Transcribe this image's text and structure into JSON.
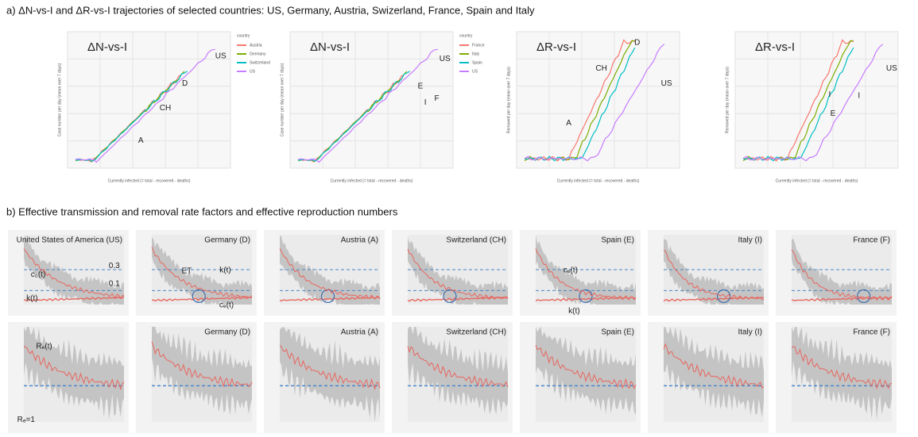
{
  "section_a": {
    "title": "a) ΔN-vs-I and ΔR-vs-I trajectories of selected countries: US, Germany, Austria, Swizerland, France, Spain and Italy",
    "panels": [
      {
        "label": "ΔN-vs-I",
        "y_label": "Case number per day (mean over 7 days)",
        "x_label": "Currently infected (= total - recovered - deaths)",
        "legend_title": "country",
        "legend": [
          {
            "name": "Austria",
            "color": "#f8766d"
          },
          {
            "name": "Germany",
            "color": "#7cae00"
          },
          {
            "name": "Switzerland",
            "color": "#00bfc4"
          },
          {
            "name": "US",
            "color": "#c77cff"
          }
        ],
        "annotations": [
          "US",
          "D",
          "CH",
          "A"
        ]
      },
      {
        "label": "ΔN-vs-I",
        "y_label": "Case number per day (mean over 7 days)",
        "x_label": "Currently infected (= total - recovered - deaths)",
        "legend_title": "country",
        "legend": [
          {
            "name": "France",
            "color": "#f8766d"
          },
          {
            "name": "Italy",
            "color": "#7cae00"
          },
          {
            "name": "Spain",
            "color": "#00bfc4"
          },
          {
            "name": "US",
            "color": "#c77cff"
          }
        ],
        "annotations": [
          "US",
          "E",
          "I",
          "F"
        ]
      },
      {
        "label": "ΔR-vs-I",
        "y_label": "Removed per day (mean over 7 days)",
        "x_label": "Currently infected (= total - recovered - deaths)",
        "annotations": [
          "D",
          "CH",
          "US",
          "A"
        ]
      },
      {
        "label": "ΔR-vs-I",
        "y_label": "Removed per day (mean over 7 days)",
        "x_label": "Currently infected (= total - recovered - deaths)",
        "annotations": [
          "US",
          "I",
          "I",
          "E"
        ]
      }
    ]
  },
  "section_b": {
    "title": "b) Effective transmission and removal rate factors and effective reproduction numbers",
    "rate_panels": [
      {
        "title": "United States of America (US)",
        "annotations": [
          "0.3",
          "0.1",
          "c₀(t)",
          "k(t)"
        ]
      },
      {
        "title": "Germany (D)",
        "annotations": [
          "ET",
          "k(t)",
          "cₑ(t)"
        ]
      },
      {
        "title": "Austria (A)",
        "annotations": []
      },
      {
        "title": "Switzerland (CH)",
        "annotations": []
      },
      {
        "title": "Spain (E)",
        "annotations": [
          "cₑ(t)",
          "k(t)"
        ]
      },
      {
        "title": "Italy (I)",
        "annotations": []
      },
      {
        "title": "France (F)",
        "annotations": []
      }
    ],
    "r_panels": [
      {
        "title": "",
        "annotations": [
          "Rₑ(t)",
          "Rₑ=1"
        ]
      },
      {
        "title": "Germany (D)",
        "annotations": []
      },
      {
        "title": "Austria (A)",
        "annotations": []
      },
      {
        "title": "Switzerland (CH)",
        "annotations": []
      },
      {
        "title": "Spain (E)",
        "annotations": []
      },
      {
        "title": "Italy (I)",
        "annotations": []
      },
      {
        "title": "France (F)",
        "annotations": []
      }
    ]
  }
}
